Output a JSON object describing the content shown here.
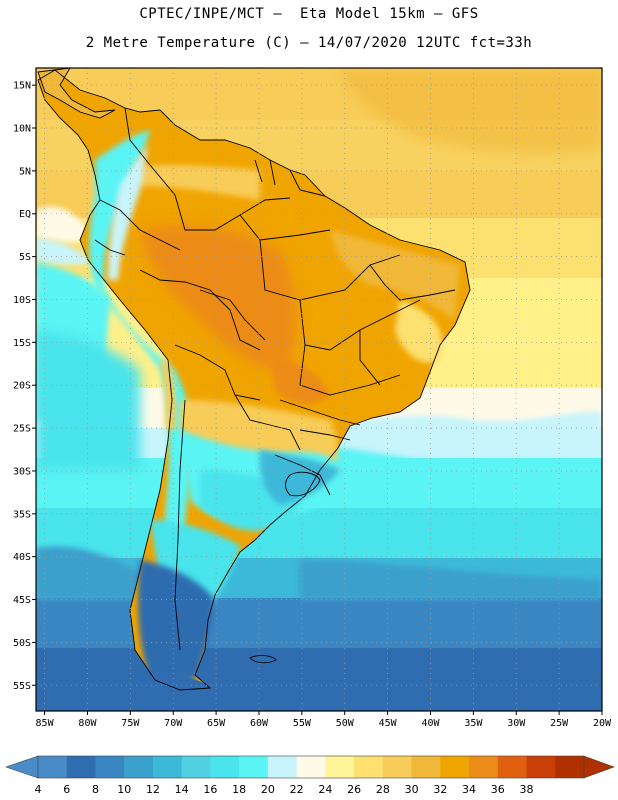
{
  "title_line1": "CPTEC/INPE/MCT –  Eta Model 15km – GFS",
  "title_line2": "2 Metre Temperature (C) – 14/07/2020 12UTC fct=33h",
  "lat_labels": [
    "15N",
    "10N",
    "5N",
    "EQ",
    "5S",
    "10S",
    "15S",
    "20S",
    "25S",
    "30S",
    "35S",
    "40S",
    "45S",
    "50S",
    "55S"
  ],
  "lat_values": [
    15,
    10,
    5,
    0,
    -5,
    -10,
    -15,
    -20,
    -25,
    -30,
    -35,
    -40,
    -45,
    -50,
    -55
  ],
  "lon_labels": [
    "85W",
    "80W",
    "75W",
    "70W",
    "65W",
    "60W",
    "55W",
    "50W",
    "45W",
    "40W",
    "35W",
    "30W",
    "25W",
    "20W"
  ],
  "lon_values": [
    -85,
    -80,
    -75,
    -70,
    -65,
    -60,
    -55,
    -50,
    -45,
    -40,
    -35,
    -30,
    -25,
    -20
  ],
  "map_extent": {
    "lon_min": -86,
    "lon_max": -20,
    "lat_min": -58,
    "lat_max": 17
  },
  "colorbar": {
    "labels": [
      "4",
      "6",
      "8",
      "10",
      "12",
      "14",
      "16",
      "18",
      "20",
      "22",
      "24",
      "26",
      "28",
      "30",
      "32",
      "34",
      "36",
      "38"
    ],
    "colors": [
      "#4a8cc8",
      "#2f6cb0",
      "#3a86c2",
      "#3aa0cc",
      "#3cb8d8",
      "#50d0e0",
      "#4ae4ec",
      "#5af4f4",
      "#c8f4fc",
      "#fffae8",
      "#fff498",
      "#fce070",
      "#f8cc58",
      "#f0b838",
      "#f0a400",
      "#ec8c18",
      "#e06010",
      "#c84008",
      "#b03000"
    ],
    "low_arrow": "#4a8cc8",
    "high_arrow": "#b03000"
  }
}
